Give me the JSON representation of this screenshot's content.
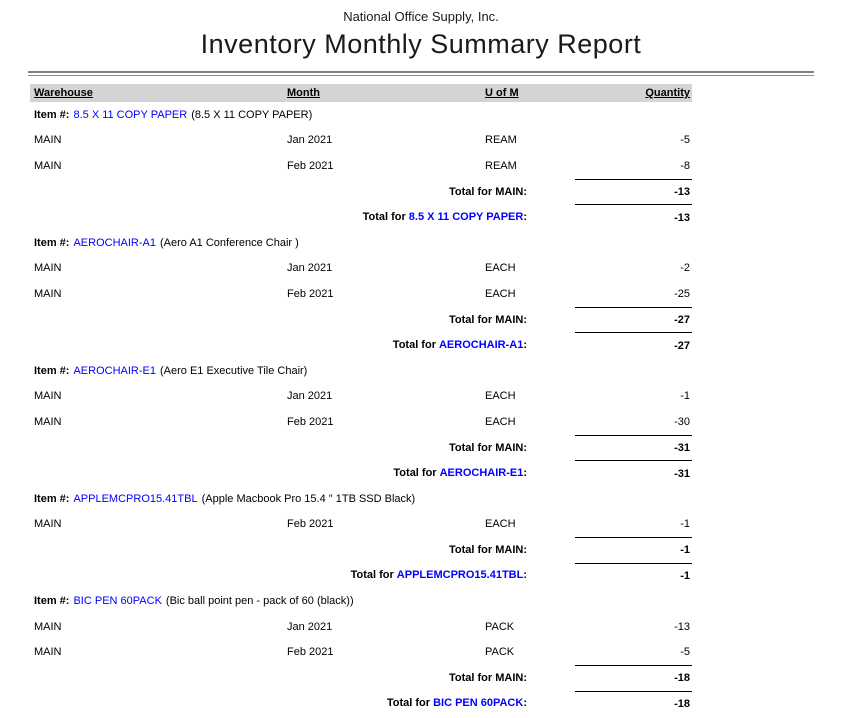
{
  "report": {
    "company": "National Office Supply, Inc.",
    "title": "Inventory Monthly Summary Report",
    "item_label": "Item #:",
    "total_for": "Total for",
    "colon": ":",
    "accent_blue": "#0000ff",
    "header_bg": "#d4d4d4",
    "columns": {
      "warehouse": "Warehouse",
      "month": "Month",
      "uom": "U of M",
      "quantity": "Quantity"
    },
    "sections": [
      {
        "item_code": "8.5 X 11 COPY PAPER",
        "item_description": "(8.5 X 11 COPY PAPER)",
        "rows": [
          {
            "warehouse": "MAIN",
            "month": "Jan 2021",
            "uom": "REAM",
            "quantity": "-5"
          },
          {
            "warehouse": "MAIN",
            "month": "Feb 2021",
            "uom": "REAM",
            "quantity": "-8"
          }
        ],
        "warehouse_total_label": "Total for MAIN:",
        "warehouse_total_value": "-13",
        "item_total_value": "-13"
      },
      {
        "item_code": "AEROCHAIR-A1",
        "item_description": "(Aero A1 Conference Chair )",
        "rows": [
          {
            "warehouse": "MAIN",
            "month": "Jan 2021",
            "uom": "EACH",
            "quantity": "-2"
          },
          {
            "warehouse": "MAIN",
            "month": "Feb 2021",
            "uom": "EACH",
            "quantity": "-25"
          }
        ],
        "warehouse_total_label": "Total for MAIN:",
        "warehouse_total_value": "-27",
        "item_total_value": "-27"
      },
      {
        "item_code": "AEROCHAIR-E1",
        "item_description": "(Aero E1 Executive Tile Chair)",
        "rows": [
          {
            "warehouse": "MAIN",
            "month": "Jan 2021",
            "uom": "EACH",
            "quantity": "-1"
          },
          {
            "warehouse": "MAIN",
            "month": "Feb 2021",
            "uom": "EACH",
            "quantity": "-30"
          }
        ],
        "warehouse_total_label": "Total for MAIN:",
        "warehouse_total_value": "-31",
        "item_total_value": "-31"
      },
      {
        "item_code": "APPLEMCPRO15.41TBL",
        "item_description": "(Apple Macbook Pro 15.4 \" 1TB SSD Black)",
        "rows": [
          {
            "warehouse": "MAIN",
            "month": "Feb 2021",
            "uom": "EACH",
            "quantity": "-1"
          }
        ],
        "warehouse_total_label": "Total for MAIN:",
        "warehouse_total_value": "-1",
        "item_total_value": "-1"
      },
      {
        "item_code": "BIC PEN 60PACK",
        "item_description": "(Bic ball point pen - pack of 60 (black))",
        "rows": [
          {
            "warehouse": "MAIN",
            "month": "Jan 2021",
            "uom": "PACK",
            "quantity": "-13"
          },
          {
            "warehouse": "MAIN",
            "month": "Feb 2021",
            "uom": "PACK",
            "quantity": "-5"
          }
        ],
        "warehouse_total_label": "Total for MAIN:",
        "warehouse_total_value": "-18",
        "item_total_value": "-18"
      }
    ]
  }
}
